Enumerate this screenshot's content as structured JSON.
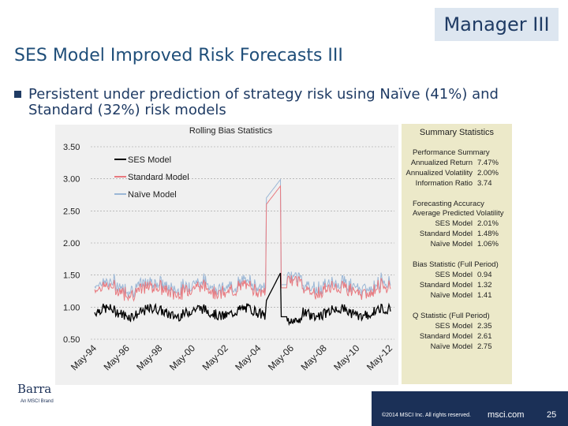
{
  "header": {
    "tag": "Manager III",
    "title": "SES Model Improved Risk Forecasts III"
  },
  "bullet": {
    "text": "Persistent under prediction of strategy risk using Naïve (41%) and Standard (32%) risk models"
  },
  "chart_data": {
    "type": "line",
    "title": "Rolling Bias Statistics",
    "ylim": [
      0.5,
      3.5
    ],
    "yticks": [
      "3.50",
      "3.00",
      "2.50",
      "2.00",
      "1.50",
      "1.00",
      "0.50"
    ],
    "xticks": [
      "May-94",
      "May-96",
      "May-98",
      "May-00",
      "May-02",
      "May-04",
      "May-06",
      "May-08",
      "May-10",
      "May-12"
    ],
    "legend": [
      "SES Model",
      "Standard Model",
      "Naïve Model"
    ],
    "legend_position": "top-left",
    "grid": true,
    "series_colors": [
      "#000000",
      "#e8797f",
      "#9bb7d6"
    ]
  },
  "stats": {
    "title": "Summary Statistics",
    "performance": {
      "heading": "Performance Summary",
      "rows": [
        {
          "label": "Annualized Return",
          "value": "7.47%"
        },
        {
          "label": "Annualized Volatility",
          "value": "2.00%"
        },
        {
          "label": "Information Ratio",
          "value": "3.74"
        }
      ]
    },
    "forecasting": {
      "heading": "Forecasting Accuracy",
      "subheading": "Average Predicted Volatility",
      "rows": [
        {
          "label": "SES Model",
          "value": "2.01%"
        },
        {
          "label": "Standard Model",
          "value": "1.48%"
        },
        {
          "label": "Naïve Model",
          "value": "1.06%"
        }
      ]
    },
    "bias": {
      "heading": "Bias Statistic (Full Period)",
      "rows": [
        {
          "label": "SES Model",
          "value": "0.94"
        },
        {
          "label": "Standard Model",
          "value": "1.32"
        },
        {
          "label": "Naïve Model",
          "value": "1.41"
        }
      ]
    },
    "q": {
      "heading": "Q Statistic (Full Period)",
      "rows": [
        {
          "label": "SES Model",
          "value": "2.35"
        },
        {
          "label": "Standard Model",
          "value": "2.61"
        },
        {
          "label": "Naïve Model",
          "value": "2.75"
        }
      ]
    }
  },
  "footer": {
    "logo": "Barra",
    "logo_sub": "An MSCI Brand",
    "copyright": "©2014 MSCI Inc. All rights reserved.",
    "site": "msci.com",
    "page": "25"
  }
}
